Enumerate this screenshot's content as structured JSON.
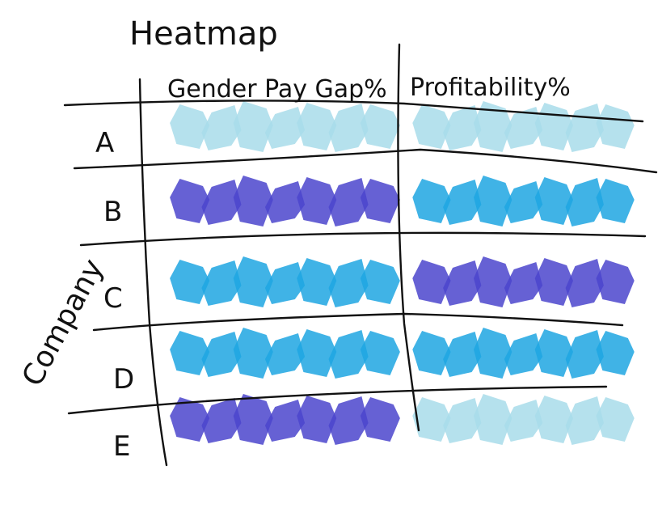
{
  "chart_data": {
    "type": "heatmap",
    "title": "Heatmap",
    "xlabel": "",
    "ylabel": "Company",
    "columns": [
      "Gender Pay Gap%",
      "Profitability%"
    ],
    "rows": [
      "A",
      "B",
      "C",
      "D",
      "E"
    ],
    "values": [
      [
        1,
        1
      ],
      [
        3,
        2
      ],
      [
        2,
        3
      ],
      [
        2,
        2
      ],
      [
        3,
        1
      ]
    ],
    "color_scale": {
      "1": "#a8dcea",
      "2": "#1ea6e2",
      "3": "#4b45cc"
    },
    "grid": true,
    "legend": "none"
  }
}
